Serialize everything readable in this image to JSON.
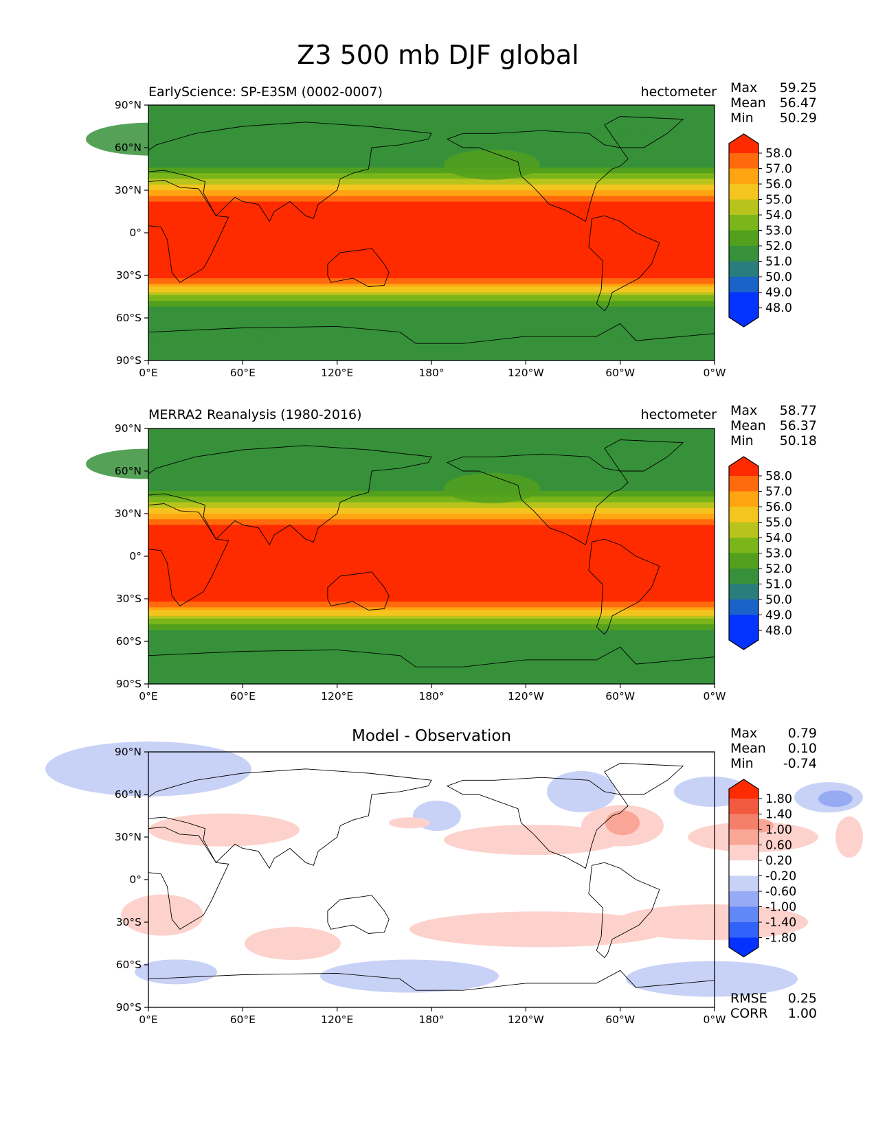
{
  "figure_title": "Z3 500 mb DJF global",
  "colors": {
    "contour_fill": [
      "#0432ff",
      "#1a63c8",
      "#2a7d7d",
      "#36913a",
      "#52a01d",
      "#7ab51a",
      "#b8c41c",
      "#f4c41f",
      "#ffa512",
      "#ff6a0c",
      "#ff2b00"
    ],
    "diff_fill": [
      "#0432ff",
      "#3163fa",
      "#6088f6",
      "#97aaf4",
      "#c8d1f6",
      "#ffffff",
      "#fdd2cc",
      "#f9a697",
      "#f58069",
      "#f25a3f",
      "#ff2b00"
    ],
    "coastline": "#000000"
  },
  "panels": [
    {
      "name": "test",
      "left_title": "EarlyScience: SP-E3SM (0002-0007)",
      "right_title": "hectometer",
      "stats": [
        {
          "label": "Max",
          "value": "59.25"
        },
        {
          "label": "Mean",
          "value": "56.47"
        },
        {
          "label": "Min",
          "value": "50.29"
        }
      ]
    },
    {
      "name": "reference",
      "left_title": "MERRA2 Reanalysis (1980-2016)",
      "right_title": "hectometer",
      "stats": [
        {
          "label": "Max",
          "value": "58.77"
        },
        {
          "label": "Mean",
          "value": "56.37"
        },
        {
          "label": "Min",
          "value": "50.18"
        }
      ]
    },
    {
      "name": "diff",
      "center_title": "Model - Observation",
      "stats": [
        {
          "label": "Max",
          "value": "0.79"
        },
        {
          "label": "Mean",
          "value": "0.10"
        },
        {
          "label": "Min",
          "value": "-0.74"
        }
      ],
      "extra_stats": [
        {
          "label": "RMSE",
          "value": "0.25"
        },
        {
          "label": "CORR",
          "value": "1.00"
        }
      ]
    }
  ],
  "chart_data": [
    {
      "type": "heatmap",
      "title": "EarlyScience: SP-E3SM (0002-0007)",
      "units": "hectometer",
      "x_ticks": [
        "0°E",
        "60°E",
        "120°E",
        "180°",
        "120°W",
        "60°W",
        "0°W"
      ],
      "y_ticks": [
        "90°N",
        "60°N",
        "30°N",
        "0°",
        "30°S",
        "60°S",
        "90°S"
      ],
      "xlim": [
        0,
        360
      ],
      "ylim": [
        -90,
        90
      ],
      "levels": [
        48,
        49,
        50,
        51,
        52,
        53,
        54,
        55,
        56,
        57,
        58
      ],
      "colorbar_labels": [
        "58.0",
        "57.0",
        "56.0",
        "55.0",
        "54.0",
        "53.0",
        "52.0",
        "51.0",
        "50.0",
        "49.0",
        "48.0"
      ],
      "stats": {
        "max": 59.25,
        "mean": 56.47,
        "min": 50.29
      }
    },
    {
      "type": "heatmap",
      "title": "MERRA2 Reanalysis (1980-2016)",
      "units": "hectometer",
      "x_ticks": [
        "0°E",
        "60°E",
        "120°E",
        "180°",
        "120°W",
        "60°W",
        "0°W"
      ],
      "y_ticks": [
        "90°N",
        "60°N",
        "30°N",
        "0°",
        "30°S",
        "60°S",
        "90°S"
      ],
      "xlim": [
        0,
        360
      ],
      "ylim": [
        -90,
        90
      ],
      "levels": [
        48,
        49,
        50,
        51,
        52,
        53,
        54,
        55,
        56,
        57,
        58
      ],
      "colorbar_labels": [
        "58.0",
        "57.0",
        "56.0",
        "55.0",
        "54.0",
        "53.0",
        "52.0",
        "51.0",
        "50.0",
        "49.0",
        "48.0"
      ],
      "stats": {
        "max": 58.77,
        "mean": 56.37,
        "min": 50.18
      }
    },
    {
      "type": "heatmap",
      "title": "Model - Observation",
      "x_ticks": [
        "0°E",
        "60°E",
        "120°E",
        "180°",
        "120°W",
        "60°W",
        "0°W"
      ],
      "y_ticks": [
        "90°N",
        "60°N",
        "30°N",
        "0°",
        "30°S",
        "60°S",
        "90°S"
      ],
      "xlim": [
        0,
        360
      ],
      "ylim": [
        -90,
        90
      ],
      "levels": [
        -1.8,
        -1.4,
        -1.0,
        -0.6,
        -0.2,
        0.2,
        0.6,
        1.0,
        1.4,
        1.8
      ],
      "colorbar_labels": [
        "1.80",
        "1.40",
        "1.00",
        "0.60",
        "0.20",
        "-0.20",
        "-0.60",
        "-1.00",
        "-1.40",
        "-1.80"
      ],
      "stats": {
        "max": 0.79,
        "mean": 0.1,
        "min": -0.74,
        "rmse": 0.25,
        "corr": 1.0
      }
    }
  ]
}
